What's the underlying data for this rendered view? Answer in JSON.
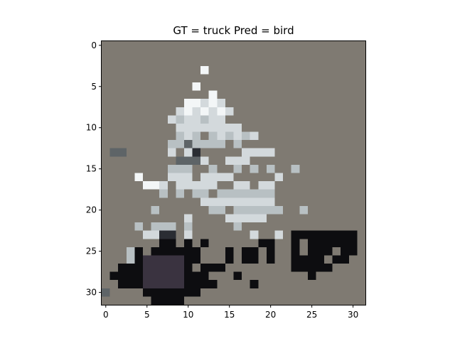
{
  "figure": {
    "title": "GT = truck Pred = bird"
  },
  "axes": {
    "xticks": [
      "0",
      "5",
      "10",
      "15",
      "20",
      "25",
      "30"
    ],
    "yticks": [
      "0",
      "5",
      "10",
      "15",
      "20",
      "25",
      "30"
    ],
    "grid": false
  },
  "image": {
    "background_color": "#7f7a72",
    "palette": {
      "W": "#f3f6f7",
      "L": "#d3d9dc",
      "M": "#b8c0c3",
      "G": "#9ea5a8",
      "S": "#5e6467",
      "D": "#2a2d33",
      "K": "#0d0d10",
      "P": "#3a3340"
    }
  }
}
